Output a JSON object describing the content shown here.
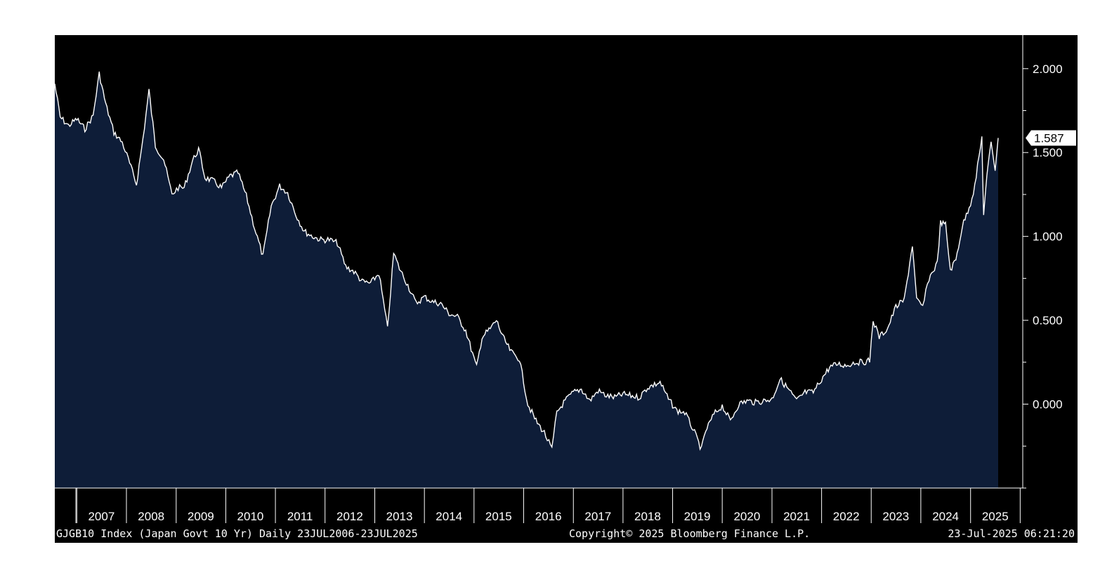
{
  "colors": {
    "background": "#000000",
    "area_fill": "#0e1d38",
    "line": "#ffffff",
    "text": "#ffffff"
  },
  "footer": {
    "left": "GJGB10 Index (Japan Govt 10 Yr)  Daily 23JUL2006-23JUL2025",
    "center": "Copyright© 2025 Bloomberg Finance L.P.",
    "right": "23-Jul-2025 06:21:20"
  },
  "chart_data": {
    "type": "area",
    "title": "",
    "xlabel": "",
    "ylabel": "",
    "x_range": [
      "2006-07-23",
      "2025-07-23"
    ],
    "ylim": [
      -0.5,
      2.2
    ],
    "yticks": [
      "2.000",
      "1.500",
      "1.000",
      "0.500",
      "0.000"
    ],
    "ytick_values": [
      2.0,
      1.5,
      1.0,
      0.5,
      0.0
    ],
    "xtick_labels": [
      "2007",
      "2008",
      "2009",
      "2010",
      "2011",
      "2012",
      "2013",
      "2014",
      "2015",
      "2016",
      "2017",
      "2018",
      "2019",
      "2020",
      "2021",
      "2022",
      "2023",
      "2024",
      "2025"
    ],
    "last_value_label": "1.587",
    "last_value": 1.587,
    "grid": false,
    "series": [
      {
        "x": [
          "2006-07-23",
          "2006-09-01",
          "2006-11-01",
          "2007-01-01",
          "2007-03-01",
          "2007-05-01",
          "2007-06-15",
          "2007-08-01",
          "2007-10-01",
          "2007-12-01",
          "2008-01-15",
          "2008-03-15",
          "2008-05-01",
          "2008-06-15",
          "2008-08-01",
          "2008-10-01",
          "2008-12-01",
          "2009-01-15",
          "2009-03-01",
          "2009-05-01",
          "2009-06-15",
          "2009-08-01",
          "2009-10-01",
          "2009-12-01",
          "2010-02-01",
          "2010-04-01",
          "2010-06-01",
          "2010-08-01",
          "2010-10-01",
          "2010-12-01",
          "2011-02-01",
          "2011-04-01",
          "2011-06-01",
          "2011-08-01",
          "2011-10-01",
          "2011-12-01",
          "2012-02-01",
          "2012-04-01",
          "2012-06-01",
          "2012-08-01",
          "2012-10-01",
          "2012-12-01",
          "2013-02-01",
          "2013-04-05",
          "2013-05-20",
          "2013-07-01",
          "2013-09-01",
          "2013-11-01",
          "2014-01-01",
          "2014-03-01",
          "2014-05-01",
          "2014-07-01",
          "2014-09-01",
          "2014-11-01",
          "2015-01-20",
          "2015-03-01",
          "2015-05-01",
          "2015-06-15",
          "2015-08-01",
          "2015-10-01",
          "2015-12-01",
          "2016-02-01",
          "2016-04-01",
          "2016-06-01",
          "2016-07-27",
          "2016-09-01",
          "2016-11-01",
          "2017-01-01",
          "2017-03-01",
          "2017-05-01",
          "2017-07-01",
          "2017-09-01",
          "2017-11-01",
          "2018-01-01",
          "2018-03-01",
          "2018-05-01",
          "2018-07-01",
          "2018-10-01",
          "2018-12-01",
          "2019-02-01",
          "2019-04-01",
          "2019-06-01",
          "2019-08-01",
          "2019-09-01",
          "2019-11-01",
          "2020-01-01",
          "2020-03-01",
          "2020-05-01",
          "2020-07-01",
          "2020-09-01",
          "2020-11-01",
          "2021-01-01",
          "2021-03-01",
          "2021-05-01",
          "2021-07-01",
          "2021-09-01",
          "2021-11-01",
          "2022-01-01",
          "2022-03-01",
          "2022-05-01",
          "2022-07-01",
          "2022-09-01",
          "2022-11-01",
          "2022-12-21",
          "2023-01-15",
          "2023-03-01",
          "2023-05-01",
          "2023-07-01",
          "2023-09-01",
          "2023-10-31",
          "2023-12-01",
          "2024-01-15",
          "2024-03-01",
          "2024-05-01",
          "2024-05-25",
          "2024-07-01",
          "2024-08-05",
          "2024-09-15",
          "2024-11-01",
          "2025-01-01",
          "2025-02-01",
          "2025-03-25",
          "2025-04-07",
          "2025-05-01",
          "2025-06-01",
          "2025-07-01",
          "2025-07-23"
        ],
        "values": [
          1.91,
          1.71,
          1.66,
          1.7,
          1.64,
          1.72,
          1.97,
          1.79,
          1.62,
          1.56,
          1.46,
          1.31,
          1.58,
          1.87,
          1.54,
          1.46,
          1.25,
          1.29,
          1.29,
          1.45,
          1.52,
          1.35,
          1.33,
          1.29,
          1.36,
          1.38,
          1.24,
          1.05,
          0.88,
          1.18,
          1.3,
          1.26,
          1.13,
          1.03,
          1.0,
          0.98,
          0.98,
          0.96,
          0.82,
          0.79,
          0.73,
          0.72,
          0.78,
          0.45,
          0.9,
          0.81,
          0.71,
          0.6,
          0.64,
          0.61,
          0.6,
          0.54,
          0.52,
          0.44,
          0.22,
          0.4,
          0.45,
          0.5,
          0.4,
          0.31,
          0.27,
          0.0,
          -0.1,
          -0.17,
          -0.27,
          -0.05,
          0.02,
          0.07,
          0.09,
          0.02,
          0.08,
          0.05,
          0.04,
          0.06,
          0.05,
          0.04,
          0.1,
          0.13,
          0.03,
          -0.04,
          -0.05,
          -0.15,
          -0.27,
          -0.16,
          -0.06,
          -0.01,
          -0.1,
          0.0,
          0.02,
          0.01,
          0.02,
          0.03,
          0.15,
          0.09,
          0.02,
          0.07,
          0.07,
          0.15,
          0.22,
          0.24,
          0.23,
          0.25,
          0.25,
          0.26,
          0.5,
          0.4,
          0.45,
          0.58,
          0.62,
          0.95,
          0.62,
          0.58,
          0.75,
          0.84,
          1.08,
          1.07,
          0.8,
          0.86,
          1.06,
          1.2,
          1.3,
          1.59,
          1.13,
          1.35,
          1.57,
          1.4,
          1.587
        ]
      }
    ]
  }
}
